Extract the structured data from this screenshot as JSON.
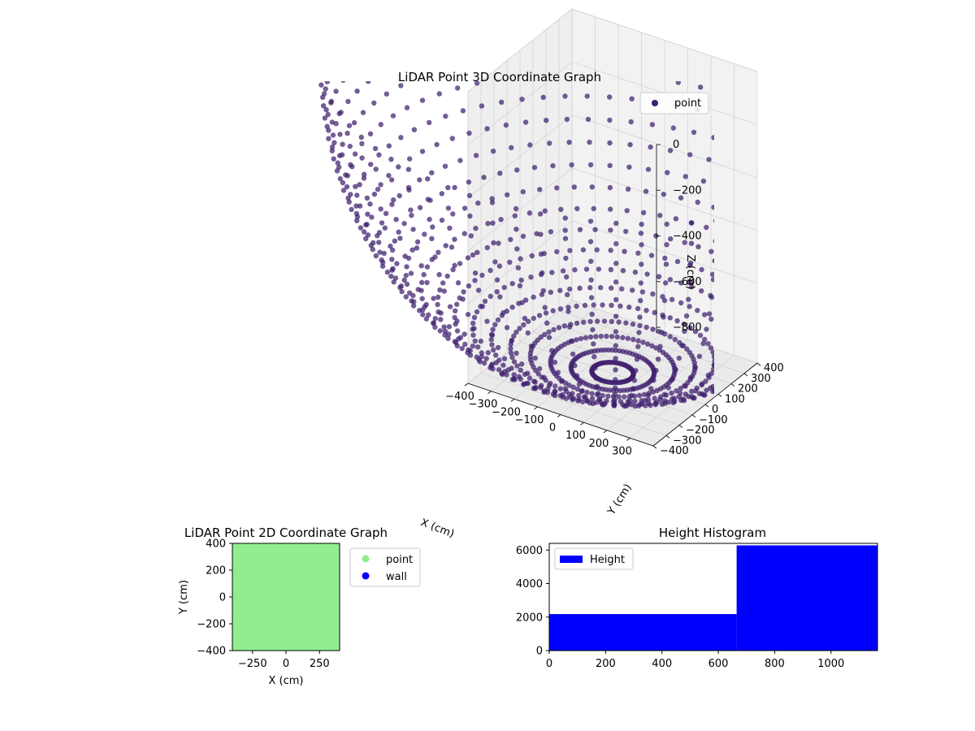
{
  "chart_data": [
    {
      "type": "scatter",
      "projection": "3d",
      "title": "LiDAR Point 3D Coordinate Graph",
      "xlabel": "X (cm)",
      "ylabel": "Y (cm)",
      "zlabel": "Z (cm)",
      "xlim": [
        -400,
        400
      ],
      "ylim": [
        -400,
        400
      ],
      "zlim": [
        -1100,
        0
      ],
      "xticks": [
        -400,
        -300,
        -200,
        -100,
        0,
        100,
        200,
        300
      ],
      "yticks": [
        -400,
        -300,
        -200,
        -100,
        0,
        100,
        200,
        300,
        400
      ],
      "zticks": [
        0,
        -200,
        -400,
        -600,
        -800
      ],
      "legend": {
        "placement": "upper-right",
        "entries": [
          "point"
        ]
      },
      "grid": true,
      "series": [
        {
          "name": "point",
          "color": "#3f1f6e",
          "shape": "hemispherical shell of points, radius ≈ 1100 cm, centred at origin, opening upward",
          "ring_count": 22,
          "spokes_per_ring": 72
        }
      ]
    },
    {
      "type": "scatter",
      "title": "LiDAR Point 2D Coordinate Graph",
      "xlabel": "X (cm)",
      "ylabel": "Y (cm)",
      "xlim": [
        -400,
        400
      ],
      "ylim": [
        -400,
        400
      ],
      "xticks": [
        -250,
        0,
        250
      ],
      "yticks": [
        -400,
        -200,
        0,
        200,
        400
      ],
      "legend": {
        "placement": "outside-right",
        "entries": [
          "point",
          "wall"
        ]
      },
      "series": [
        {
          "name": "point",
          "color": "#90ee90",
          "coverage": "fills entire plot area"
        },
        {
          "name": "wall",
          "color": "#0000ff"
        }
      ]
    },
    {
      "type": "bar",
      "title": "Height Histogram",
      "xlim": [
        0,
        1165
      ],
      "ylim": [
        0,
        6400
      ],
      "xticks": [
        0,
        200,
        400,
        600,
        800,
        1000
      ],
      "yticks": [
        0,
        2000,
        4000,
        6000
      ],
      "legend": {
        "placement": "upper-left",
        "entries": [
          "Height"
        ]
      },
      "series": [
        {
          "name": "Height",
          "color": "#0000ff",
          "bins": [
            {
              "x0": 0,
              "x1": 665,
              "value": 2180
            },
            {
              "x0": 665,
              "x1": 1165,
              "value": 6280
            }
          ]
        }
      ]
    }
  ]
}
